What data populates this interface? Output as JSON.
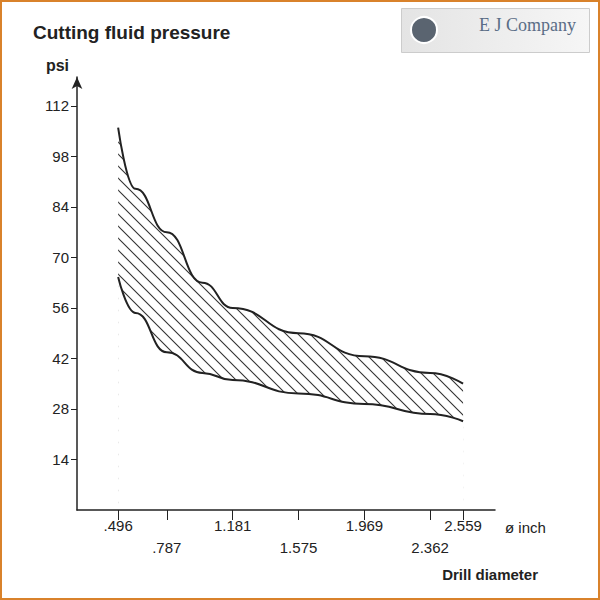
{
  "chart_data": {
    "type": "band",
    "title": "Cutting fluid pressure",
    "ylabel": "psi",
    "xlabel": "Drill diameter",
    "xunit": "ø inch",
    "logo_text": "E J Company",
    "x": [
      0.496,
      0.6,
      0.787,
      1.0,
      1.181,
      1.575,
      1.969,
      2.362,
      2.559
    ],
    "series": [
      {
        "color": "#222222",
        "values": [
          106,
          89,
          77,
          63,
          56,
          49,
          42.6,
          38,
          35
        ]
      },
      {
        "color": "#222222",
        "values": [
          64.6,
          54.6,
          43.7,
          38,
          36,
          32.3,
          29.4,
          26.6,
          24.6
        ]
      }
    ],
    "xlim": [
      0.25,
      2.75
    ],
    "xticks": [
      {
        "value": 0.496,
        "label": ".496"
      },
      {
        "value": 0.787,
        "label": ".787"
      },
      1.181,
      1.575,
      1.969,
      2.362,
      2.559
    ],
    "ylim": [
      0,
      120
    ],
    "yticks": [
      14,
      28,
      42,
      56,
      70,
      84,
      98,
      112
    ],
    "grid": false
  }
}
